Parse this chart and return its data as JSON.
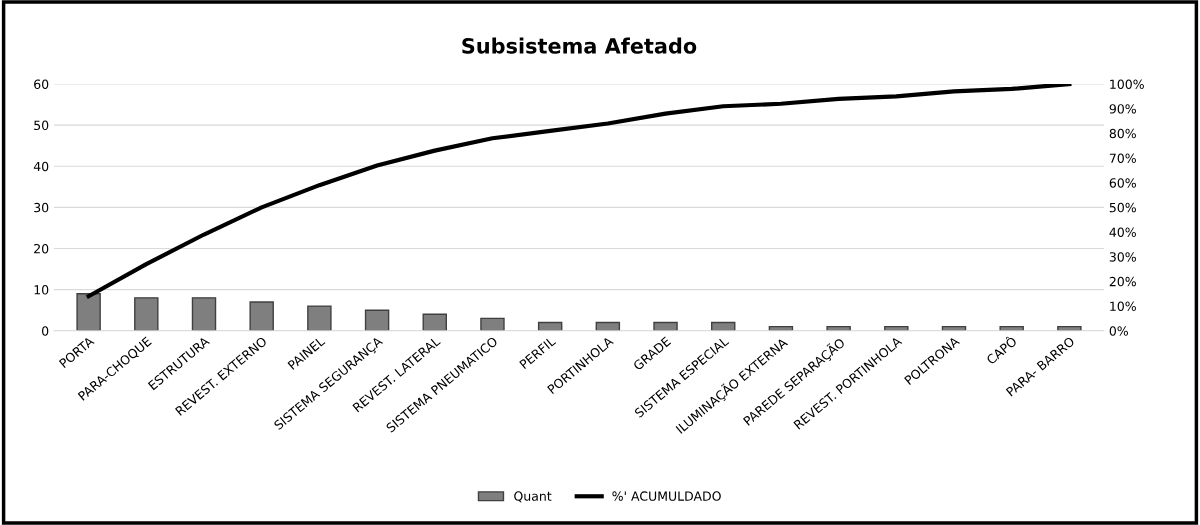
{
  "chart_data": {
    "type": "bar",
    "title": "Subsistema Afetado",
    "categories": [
      "PORTA",
      "PARA-CHOQUE",
      "ESTRUTURA",
      "REVEST. EXTERNO",
      "PAINEL",
      "SISTEMA SEGURANÇA",
      "REVEST. LATERAL",
      "SISTEMA PNEUMATICO",
      "PERFIL",
      "PORTINHOLA",
      "GRADE",
      "SISTEMA ESPECIAL",
      "ILUMINAÇÃO EXTERNA",
      "PAREDE SEPARAÇÃO",
      "REVEST. PORTINHOLA",
      "POLTRONA",
      "CAPÔ",
      "PARA- BARRO"
    ],
    "series": [
      {
        "name": "Quant",
        "color": "#7f7f7f",
        "values": [
          9,
          8,
          8,
          7,
          6,
          5,
          4,
          3,
          2,
          2,
          2,
          2,
          1,
          1,
          1,
          1,
          1,
          1
        ]
      },
      {
        "name": "%' ACUMULDADO",
        "type": "line",
        "axis": "y2",
        "color": "#000000",
        "values": [
          14,
          27,
          39,
          50,
          59,
          67,
          73,
          78,
          81,
          84,
          88,
          91,
          92,
          94,
          95,
          97,
          98,
          100
        ]
      }
    ],
    "ylim": [
      0,
      60
    ],
    "yticks": [
      0,
      10,
      20,
      30,
      40,
      50,
      60
    ],
    "y2lim": [
      0,
      100
    ],
    "y2ticks": [
      {
        "value": 0,
        "label": "0%"
      },
      {
        "value": 10,
        "label": "10%"
      },
      {
        "value": 20,
        "label": "20%"
      },
      {
        "value": 30,
        "label": "30%"
      },
      {
        "value": 40,
        "label": "40%"
      },
      {
        "value": 50,
        "label": "50%"
      },
      {
        "value": 60,
        "label": "60%"
      },
      {
        "value": 70,
        "label": "70%"
      },
      {
        "value": 80,
        "label": "80%"
      },
      {
        "value": 90,
        "label": "90%"
      },
      {
        "value": 100,
        "label": "100%"
      }
    ],
    "grid": "y",
    "legend": "bottom"
  }
}
